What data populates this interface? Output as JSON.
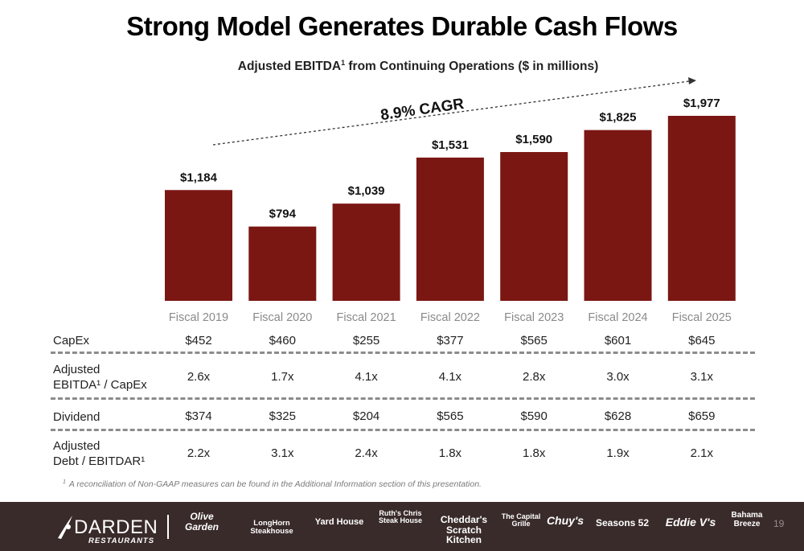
{
  "title": "Strong Model Generates Durable Cash Flows",
  "subtitle": {
    "text_before": "Adjusted EBITDA",
    "superscript": "1",
    "text_after": " from Continuing Operations ($ in millions)"
  },
  "colors": {
    "bar": "#7b1713",
    "footer": "#3a2b2b",
    "dash": "#8c8c8c"
  },
  "chart_data": {
    "type": "bar",
    "categories": [
      "Fiscal 2019",
      "Fiscal 2020",
      "Fiscal 2021",
      "Fiscal 2022",
      "Fiscal 2023",
      "Fiscal 2024",
      "Fiscal 2025"
    ],
    "values": [
      1184,
      794,
      1039,
      1531,
      1590,
      1825,
      1977
    ],
    "value_labels": [
      "$1,184",
      "$794",
      "$1,039",
      "$1,531",
      "$1,590",
      "$1,825",
      "$1,977"
    ],
    "annotation": "8.9% CAGR",
    "ylim": [
      0,
      2100
    ],
    "grid": false,
    "legend": "none"
  },
  "table": {
    "rows": [
      {
        "label_lines": [
          "CapEx"
        ],
        "values": [
          "$452",
          "$460",
          "$255",
          "$377",
          "$565",
          "$601",
          "$645"
        ]
      },
      {
        "label_lines": [
          "Adjusted",
          "EBITDA¹ / CapEx"
        ],
        "values": [
          "2.6x",
          "1.7x",
          "4.1x",
          "4.1x",
          "2.8x",
          "3.0x",
          "3.1x"
        ]
      },
      {
        "label_lines": [
          "Dividend"
        ],
        "values": [
          "$374",
          "$325",
          "$204",
          "$565",
          "$590",
          "$628",
          "$659"
        ]
      },
      {
        "label_lines": [
          "Adjusted",
          "Debt / EBITDAR¹"
        ],
        "values": [
          "2.2x",
          "3.1x",
          "2.4x",
          "1.8x",
          "1.8x",
          "1.9x",
          "2.1x"
        ]
      }
    ]
  },
  "footnote": {
    "marker": "1",
    "text": "A reconciliation of Non-GAAP measures can be found in the Additional Information section of this presentation."
  },
  "footer": {
    "company_name": "DARDEN",
    "company_sub": "RESTAURANTS",
    "brands": [
      "Olive Garden",
      "LongHorn Steakhouse",
      "Yard House",
      "Ruth's Chris Steak House",
      "Cheddar's Scratch Kitchen",
      "The Capital Grille",
      "Chuy's",
      "Seasons 52",
      "Eddie V's",
      "Bahama Breeze"
    ]
  },
  "page_number": "19"
}
